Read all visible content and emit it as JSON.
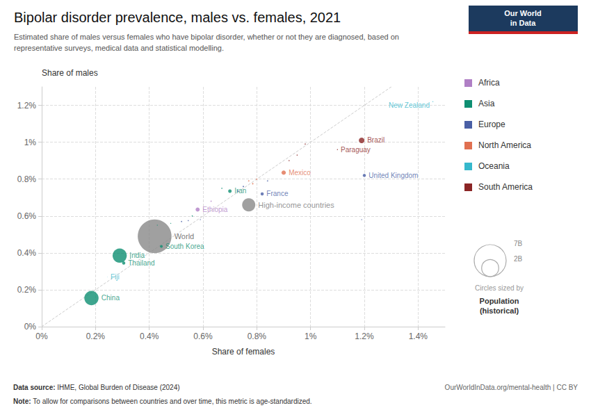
{
  "chart_data": {
    "type": "scatter",
    "title": "Bipolar disorder prevalence, males vs. females, 2021",
    "subtitle": "Estimated share of males versus females who have bipolar disorder, whether or not they are diagnosed, based on\nrepresentative surveys, medical data and statistical modelling.",
    "xlabel": "Share of females",
    "ylabel": "Share of males",
    "source_label": "Data source: ",
    "source": "IHME, Global Burden of Disease (2024)",
    "note_label": "Note: ",
    "note": "To allow for comparisons between countries and over time, this metric is age-standardized.",
    "credit": "OurWorldInData.org/mental-health | CC BY",
    "xlim": [
      0,
      0.015
    ],
    "ylim": [
      0,
      0.013
    ],
    "xticks": [
      {
        "value": 0,
        "label": "0%"
      },
      {
        "value": 0.002,
        "label": "0.2%"
      },
      {
        "value": 0.004,
        "label": "0.4%"
      },
      {
        "value": 0.006,
        "label": "0.6%"
      },
      {
        "value": 0.008,
        "label": "0.8%"
      },
      {
        "value": 0.01,
        "label": "1%"
      },
      {
        "value": 0.012,
        "label": "1.2%"
      },
      {
        "value": 0.014,
        "label": "1.4%"
      }
    ],
    "yticks": [
      {
        "value": 0,
        "label": "0%"
      },
      {
        "value": 0.002,
        "label": "0.2%"
      },
      {
        "value": 0.004,
        "label": "0.4%"
      },
      {
        "value": 0.006,
        "label": "0.6%"
      },
      {
        "value": 0.008,
        "label": "0.8%"
      },
      {
        "value": 0.01,
        "label": "1%"
      },
      {
        "value": 0.012,
        "label": "1.2%"
      }
    ],
    "grid": true,
    "legend": "right",
    "series": [
      {
        "name": "Africa",
        "color": "#b07fc5"
      },
      {
        "name": "Asia",
        "color": "#0e8f72"
      },
      {
        "name": "Europe",
        "color": "#4a5fa5"
      },
      {
        "name": "North America",
        "color": "#e07050"
      },
      {
        "name": "Oceania",
        "color": "#36b8cc"
      },
      {
        "name": "South America",
        "color": "#8b2525"
      }
    ],
    "reference_line": {
      "x": [
        0,
        0.015
      ],
      "y": [
        0,
        0.015
      ],
      "color": "#cccccc",
      "line_style": "dashed"
    },
    "points": [
      {
        "label": "China",
        "x": 0.00185,
        "y": 0.00155,
        "region": "Asia",
        "size": 1400
      },
      {
        "label": "Fiji",
        "x": 0.00245,
        "y": 0.0027,
        "region": "Oceania",
        "size": 1
      },
      {
        "label": "India",
        "x": 0.0029,
        "y": 0.00385,
        "region": "Asia",
        "size": 1380
      },
      {
        "label": "Thailand",
        "x": 0.00305,
        "y": 0.00345,
        "region": "Asia",
        "size": 70
      },
      {
        "label": "World",
        "x": 0.0042,
        "y": 0.0049,
        "color": "#888888",
        "label_color": "#555555",
        "size": 7800
      },
      {
        "label": "South Korea",
        "x": 0.00445,
        "y": 0.00435,
        "region": "Asia",
        "size": 52
      },
      {
        "label": "Ethiopia",
        "x": 0.0058,
        "y": 0.00635,
        "region": "Africa",
        "size": 115
      },
      {
        "label": "Iran",
        "x": 0.007,
        "y": 0.00735,
        "region": "Asia",
        "size": 85
      },
      {
        "label": "High-income countries",
        "x": 0.0077,
        "y": 0.0066,
        "color": "#888888",
        "label_color": "#777777",
        "size": 1200
      },
      {
        "label": "France",
        "x": 0.0082,
        "y": 0.0072,
        "region": "Europe",
        "size": 68
      },
      {
        "label": "Mexico",
        "x": 0.009,
        "y": 0.00835,
        "region": "North America",
        "size": 130
      },
      {
        "label": "United Kingdom",
        "x": 0.012,
        "y": 0.0082,
        "region": "Europe",
        "size": 68
      },
      {
        "label": "Paraguay",
        "x": 0.011,
        "y": 0.0096,
        "region": "South America",
        "size": 7
      },
      {
        "label": "Brazil",
        "x": 0.0119,
        "y": 0.0101,
        "region": "South America",
        "size": 214
      },
      {
        "label": "New Zealand",
        "x": 0.01455,
        "y": 0.0122,
        "region": "Oceania",
        "size": 5
      },
      {
        "x": 0.0048,
        "y": 0.0056,
        "region": "Asia",
        "size": 5
      },
      {
        "x": 0.0052,
        "y": 0.0057,
        "region": "Europe",
        "size": 10
      },
      {
        "x": 0.00545,
        "y": 0.00575,
        "region": "Europe",
        "size": 8
      },
      {
        "x": 0.0056,
        "y": 0.006,
        "region": "Asia",
        "size": 8
      },
      {
        "x": 0.0059,
        "y": 0.0058,
        "region": "Europe",
        "size": 6
      },
      {
        "x": 0.0063,
        "y": 0.0068,
        "region": "Africa",
        "size": 10
      },
      {
        "x": 0.0067,
        "y": 0.0075,
        "region": "Asia",
        "size": 8
      },
      {
        "x": 0.0073,
        "y": 0.00735,
        "region": "Europe",
        "size": 20
      },
      {
        "x": 0.0075,
        "y": 0.0076,
        "region": "Europe",
        "size": 15
      },
      {
        "x": 0.0077,
        "y": 0.0079,
        "region": "North America",
        "size": 10
      },
      {
        "x": 0.00785,
        "y": 0.00775,
        "region": "North America",
        "size": 12
      },
      {
        "x": 0.008,
        "y": 0.008,
        "region": "North America",
        "size": 10
      },
      {
        "x": 0.0084,
        "y": 0.0079,
        "region": "Europe",
        "size": 10
      },
      {
        "x": 0.0092,
        "y": 0.009,
        "region": "South America",
        "size": 8
      },
      {
        "x": 0.0095,
        "y": 0.0093,
        "region": "South America",
        "size": 8
      },
      {
        "x": 0.0098,
        "y": 0.0099,
        "region": "South America",
        "size": 8
      },
      {
        "x": 0.0119,
        "y": 0.0058,
        "region": "Europe",
        "size": 6
      },
      {
        "x": 0.0033,
        "y": 0.0037,
        "region": "Asia",
        "size": 5
      },
      {
        "x": 0.0035,
        "y": 0.00395,
        "region": "Asia",
        "size": 5
      },
      {
        "x": 0.0043,
        "y": 0.0055,
        "region": "Asia",
        "size": 5
      }
    ],
    "size_legend": {
      "title": "Circles sized by",
      "name": "Population\n(historical)",
      "values": [
        7000,
        2000
      ],
      "value_labels": [
        "7B",
        "2B"
      ]
    },
    "logo": {
      "lines": [
        "Our World",
        "in Data"
      ],
      "color": "#1c3a5e",
      "stripe_color": "#cc2222"
    }
  }
}
